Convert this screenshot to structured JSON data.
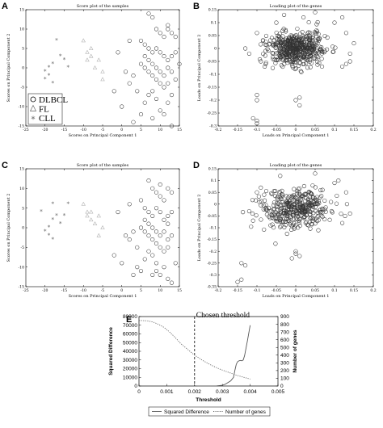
{
  "chart_data": [
    {
      "panel": "A",
      "type": "scatter",
      "title": "Score plot of the samples",
      "xlabel": "Scores on Principal Component 1",
      "ylabel": "Scores on Principal Component 2",
      "xlim": [
        -25,
        15
      ],
      "ylim": [
        -15,
        15
      ],
      "xticks": [
        -25,
        -20,
        -15,
        -10,
        -5,
        0,
        5,
        10,
        15
      ],
      "yticks": [
        -15,
        -10,
        -5,
        0,
        5,
        10,
        15
      ],
      "legend": {
        "position": "bottom-left",
        "entries": [
          "DLBCL",
          "FL",
          "CLL"
        ]
      },
      "series": [
        {
          "name": "DLBCL",
          "marker": "circle",
          "points": [
            [
              -1,
              4
            ],
            [
              2,
              7
            ],
            [
              7,
              14
            ],
            [
              8,
              13
            ],
            [
              9,
              10
            ],
            [
              10,
              9
            ],
            [
              11,
              8
            ],
            [
              12,
              10
            ],
            [
              13,
              9
            ],
            [
              14,
              8
            ],
            [
              12,
              11
            ],
            [
              13,
              3
            ],
            [
              5,
              7
            ],
            [
              6,
              6
            ],
            [
              7,
              5
            ],
            [
              8,
              4
            ],
            [
              9,
              5
            ],
            [
              10,
              4
            ],
            [
              11,
              3
            ],
            [
              12,
              2
            ],
            [
              14,
              4
            ],
            [
              6,
              3
            ],
            [
              7,
              2
            ],
            [
              8,
              1
            ],
            [
              9,
              0
            ],
            [
              10,
              -1
            ],
            [
              11,
              -2
            ],
            [
              12,
              0
            ],
            [
              13,
              -1
            ],
            [
              14,
              -3
            ],
            [
              5,
              1
            ],
            [
              6,
              0
            ],
            [
              7,
              -1
            ],
            [
              8,
              -2
            ],
            [
              9,
              -3
            ],
            [
              10,
              -4
            ],
            [
              11,
              -5
            ],
            [
              12,
              -4
            ],
            [
              13,
              -7
            ],
            [
              8,
              -6
            ],
            [
              9,
              -8
            ],
            [
              6,
              -9
            ],
            [
              7,
              -7
            ],
            [
              5,
              -12
            ],
            [
              8,
              -13
            ],
            [
              13,
              -15
            ],
            [
              14,
              -16
            ],
            [
              2,
              -4
            ],
            [
              3,
              -2
            ],
            [
              4,
              -6
            ],
            [
              1,
              -1
            ],
            [
              0,
              -10
            ],
            [
              -2,
              -6
            ],
            [
              3,
              -14
            ],
            [
              12,
              -9
            ],
            [
              10,
              -11
            ],
            [
              11,
              -12
            ],
            [
              15,
              1
            ]
          ]
        },
        {
          "name": "FL",
          "marker": "triangle",
          "points": [
            [
              -10,
              7
            ],
            [
              -9,
              4
            ],
            [
              -8,
              3
            ],
            [
              -9,
              2
            ],
            [
              -7,
              0
            ],
            [
              -5,
              -1
            ],
            [
              -5,
              -3
            ],
            [
              -6,
              2
            ],
            [
              -8,
              5
            ]
          ]
        },
        {
          "name": "CLL",
          "marker": "star",
          "points": [
            [
              -17,
              7
            ],
            [
              -16,
              3
            ],
            [
              -18,
              1
            ],
            [
              -19,
              0
            ],
            [
              -20,
              -1
            ],
            [
              -19,
              -2
            ],
            [
              -20,
              -3
            ],
            [
              -18,
              -4
            ],
            [
              -15,
              2
            ],
            [
              -14,
              0
            ]
          ]
        }
      ]
    },
    {
      "panel": "B",
      "type": "scatter",
      "title": "Loading plot of the genes",
      "xlabel": "Loads on Principal Component 1",
      "ylabel": "Loads on Principal Component 2",
      "xlim": [
        -0.2,
        0.2
      ],
      "ylim": [
        -0.3,
        0.15
      ],
      "xticks": [
        -0.2,
        -0.15,
        -0.1,
        -0.05,
        0,
        0.05,
        0.1,
        0.15,
        0.2
      ],
      "yticks": [
        -0.3,
        -0.25,
        -0.2,
        -0.15,
        -0.1,
        -0.05,
        0,
        0.05,
        0.1,
        0.15
      ],
      "series": [
        {
          "name": "",
          "marker": "circle",
          "cluster": {
            "cx": 0.0,
            "cy": 0.0,
            "sx": 0.035,
            "sy": 0.03,
            "n": 520
          },
          "points": [
            [
              -0.1,
              -0.18
            ],
            [
              -0.1,
              -0.2
            ],
            [
              -0.11,
              -0.27
            ],
            [
              -0.1,
              -0.28
            ],
            [
              -0.1,
              -0.29
            ],
            [
              0.0,
              -0.2
            ],
            [
              0.01,
              -0.19
            ],
            [
              0.01,
              -0.22
            ],
            [
              0.12,
              -0.07
            ],
            [
              0.13,
              -0.06
            ],
            [
              0.14,
              -0.05
            ],
            [
              0.13,
              0.06
            ],
            [
              0.12,
              0.12
            ],
            [
              -0.08,
              -0.07
            ],
            [
              -0.09,
              -0.05
            ],
            [
              -0.12,
              -0.02
            ],
            [
              -0.13,
              0.0
            ],
            [
              0.1,
              0.1
            ],
            [
              0.05,
              0.14
            ],
            [
              -0.05,
              0.1
            ],
            [
              -0.03,
              0.13
            ],
            [
              0.02,
              0.12
            ],
            [
              0.15,
              0.02
            ],
            [
              0.14,
              -0.02
            ],
            [
              -0.1,
              0.06
            ]
          ]
        }
      ]
    },
    {
      "panel": "C",
      "type": "scatter",
      "title": "Score plot of the samples",
      "xlabel": "Scores on Principal Component 1",
      "ylabel": "Scores on Principal Component 2",
      "xlim": [
        -25,
        15
      ],
      "ylim": [
        -15,
        15
      ],
      "xticks": [
        -25,
        -20,
        -15,
        -10,
        -5,
        0,
        5,
        10,
        15
      ],
      "yticks": [
        -15,
        -10,
        -5,
        0,
        5,
        10,
        15
      ],
      "series": [
        {
          "name": "DLBCL",
          "marker": "circle",
          "points": [
            [
              -1,
              4
            ],
            [
              2,
              6
            ],
            [
              7,
              12
            ],
            [
              8,
              10
            ],
            [
              9,
              9
            ],
            [
              10,
              8
            ],
            [
              11,
              7
            ],
            [
              12,
              10
            ],
            [
              13,
              9
            ],
            [
              10,
              11
            ],
            [
              12,
              3
            ],
            [
              5,
              7
            ],
            [
              6,
              5
            ],
            [
              7,
              4
            ],
            [
              8,
              3
            ],
            [
              9,
              5
            ],
            [
              10,
              4
            ],
            [
              11,
              2
            ],
            [
              12,
              1
            ],
            [
              13,
              4
            ],
            [
              6,
              2
            ],
            [
              7,
              1
            ],
            [
              8,
              0
            ],
            [
              9,
              -1
            ],
            [
              10,
              -2
            ],
            [
              11,
              -1
            ],
            [
              12,
              -3
            ],
            [
              13,
              -2
            ],
            [
              5,
              0
            ],
            [
              6,
              -1
            ],
            [
              7,
              -2
            ],
            [
              8,
              -3
            ],
            [
              9,
              -4
            ],
            [
              10,
              -5
            ],
            [
              11,
              -6
            ],
            [
              12,
              -5
            ],
            [
              8,
              -7
            ],
            [
              9,
              -9
            ],
            [
              6,
              -8
            ],
            [
              7,
              -6
            ],
            [
              5,
              -11
            ],
            [
              8,
              -12
            ],
            [
              12,
              -13
            ],
            [
              13,
              -14
            ],
            [
              2,
              -3
            ],
            [
              3,
              -1
            ],
            [
              4,
              -5
            ],
            [
              1,
              -2
            ],
            [
              0,
              -9
            ],
            [
              -2,
              -7
            ],
            [
              3,
              -12
            ],
            [
              11,
              -10
            ],
            [
              10,
              -12
            ],
            [
              4,
              -10
            ],
            [
              9,
              -11
            ],
            [
              14,
              -9
            ]
          ]
        },
        {
          "name": "FL",
          "marker": "triangle",
          "points": [
            [
              -10,
              6
            ],
            [
              -9,
              4
            ],
            [
              -8,
              4
            ],
            [
              -9,
              3
            ],
            [
              -7,
              1
            ],
            [
              -5,
              0
            ],
            [
              -6,
              -2
            ],
            [
              -6,
              3
            ],
            [
              -8,
              2
            ]
          ]
        },
        {
          "name": "CLL",
          "marker": "star",
          "points": [
            [
              -21,
              4
            ],
            [
              -18,
              6
            ],
            [
              -17,
              3
            ],
            [
              -18,
              2
            ],
            [
              -19,
              0
            ],
            [
              -20,
              -1
            ],
            [
              -19,
              -2
            ],
            [
              -18,
              -3
            ],
            [
              -15,
              3
            ],
            [
              -14,
              6
            ],
            [
              -16,
              1
            ]
          ]
        }
      ]
    },
    {
      "panel": "D",
      "type": "scatter",
      "title": "Loading plot of the genes",
      "xlabel": "Loads on Principal Component 1",
      "ylabel": "Loads on Principal Component 2",
      "xlim": [
        -0.2,
        0.2
      ],
      "ylim": [
        -0.35,
        0.15
      ],
      "xticks": [
        -0.2,
        -0.15,
        -0.1,
        -0.05,
        0,
        0.05,
        0.1,
        0.15,
        0.2
      ],
      "yticks": [
        -0.35,
        -0.3,
        -0.25,
        -0.2,
        -0.15,
        -0.1,
        -0.05,
        0,
        0.05,
        0.1,
        0.15
      ],
      "series": [
        {
          "name": "",
          "marker": "circle",
          "cluster": {
            "cx": 0.0,
            "cy": -0.02,
            "sx": 0.045,
            "sy": 0.04,
            "n": 380
          },
          "points": [
            [
              -0.15,
              -0.33
            ],
            [
              -0.14,
              -0.32
            ],
            [
              -0.13,
              -0.26
            ],
            [
              -0.14,
              -0.25
            ],
            [
              0.0,
              -0.2
            ],
            [
              0.0,
              -0.21
            ],
            [
              -0.01,
              -0.23
            ],
            [
              0.01,
              -0.22
            ],
            [
              -0.1,
              0.05
            ],
            [
              -0.09,
              0.07
            ],
            [
              0.1,
              0.09
            ],
            [
              0.11,
              0.1
            ],
            [
              0.13,
              0.05
            ],
            [
              0.14,
              -0.04
            ],
            [
              0.12,
              -0.08
            ],
            [
              -0.12,
              -0.03
            ],
            [
              -0.11,
              -0.07
            ],
            [
              0.05,
              0.13
            ],
            [
              -0.04,
              0.12
            ]
          ]
        }
      ]
    },
    {
      "panel": "E",
      "type": "line",
      "annotation": "Chosen threshold",
      "threshold": 0.002,
      "xlabel": "Threshold",
      "ylabel_left": "Squared Difference",
      "ylabel_right": "Number of genes",
      "xlim": [
        0,
        0.005
      ],
      "ylim_left": [
        0,
        80000
      ],
      "ylim_right": [
        0,
        900
      ],
      "xticks": [
        0,
        0.001,
        0.002,
        0.003,
        0.004,
        0.005
      ],
      "yticks_left": [
        0,
        10000,
        20000,
        30000,
        40000,
        50000,
        60000,
        70000,
        80000
      ],
      "yticks_right": [
        0,
        100,
        200,
        300,
        400,
        500,
        600,
        700,
        800,
        900
      ],
      "legend": {
        "position": "bottom",
        "entries": [
          "Squared Difference",
          "Number of genes"
        ]
      },
      "series": [
        {
          "name": "Squared Difference",
          "axis": "left",
          "style": "solid",
          "x": [
            0.0021,
            0.0025,
            0.0028,
            0.003,
            0.0031,
            0.0032,
            0.0033,
            0.0034,
            0.00345,
            0.0035,
            0.00355,
            0.0036,
            0.00365,
            0.0037,
            0.00375,
            0.0038,
            0.0039,
            0.004
          ],
          "y": [
            0,
            0,
            200,
            800,
            2000,
            4000,
            6000,
            10000,
            18000,
            25000,
            28000,
            29000,
            29500,
            29000,
            30000,
            35000,
            52000,
            70000
          ]
        },
        {
          "name": "Number of genes",
          "axis": "right",
          "style": "dotted",
          "x": [
            0,
            0.0003,
            0.0005,
            0.0007,
            0.0009,
            0.0011,
            0.0013,
            0.0015,
            0.0018,
            0.002,
            0.0023,
            0.0026,
            0.0029,
            0.0032,
            0.0035,
            0.0038,
            0.004
          ],
          "y": [
            850,
            845,
            830,
            800,
            760,
            700,
            630,
            550,
            460,
            400,
            330,
            270,
            220,
            180,
            140,
            110,
            90
          ]
        }
      ]
    }
  ]
}
